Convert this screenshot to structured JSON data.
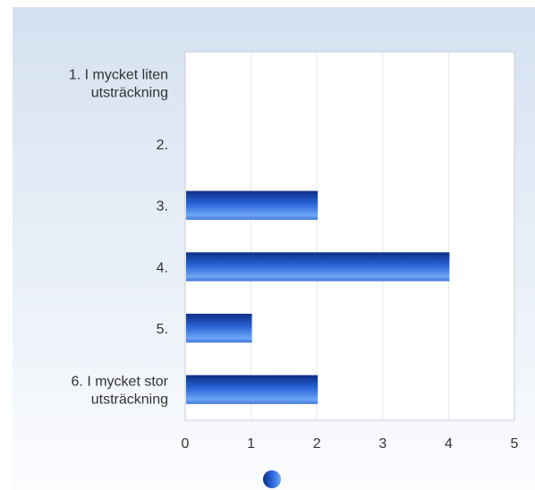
{
  "chart_data": {
    "type": "bar",
    "orientation": "horizontal",
    "categories": [
      [
        "1. I mycket liten",
        "utsträckning"
      ],
      [
        "2."
      ],
      [
        "3."
      ],
      [
        "4."
      ],
      [
        "5."
      ],
      [
        "6. I mycket stor",
        "utsträckning"
      ]
    ],
    "values": [
      0,
      0,
      2,
      4,
      1,
      2
    ],
    "xlim": [
      0,
      5
    ],
    "xticks": [
      "0",
      "1",
      "2",
      "3",
      "4",
      "5"
    ],
    "title": "",
    "xlabel": "",
    "ylabel": "",
    "grid": true,
    "legend": "bottom",
    "colors": {
      "bar_dark": "#0e2f86",
      "bar_mid": "#2a64d8",
      "bar_light": "#6ea6f5",
      "grid": "#e3e8f0",
      "frame": "#c9cfd8",
      "bg_top": "#d5e1f1",
      "bg_bottom": "#fbfcfe"
    }
  }
}
